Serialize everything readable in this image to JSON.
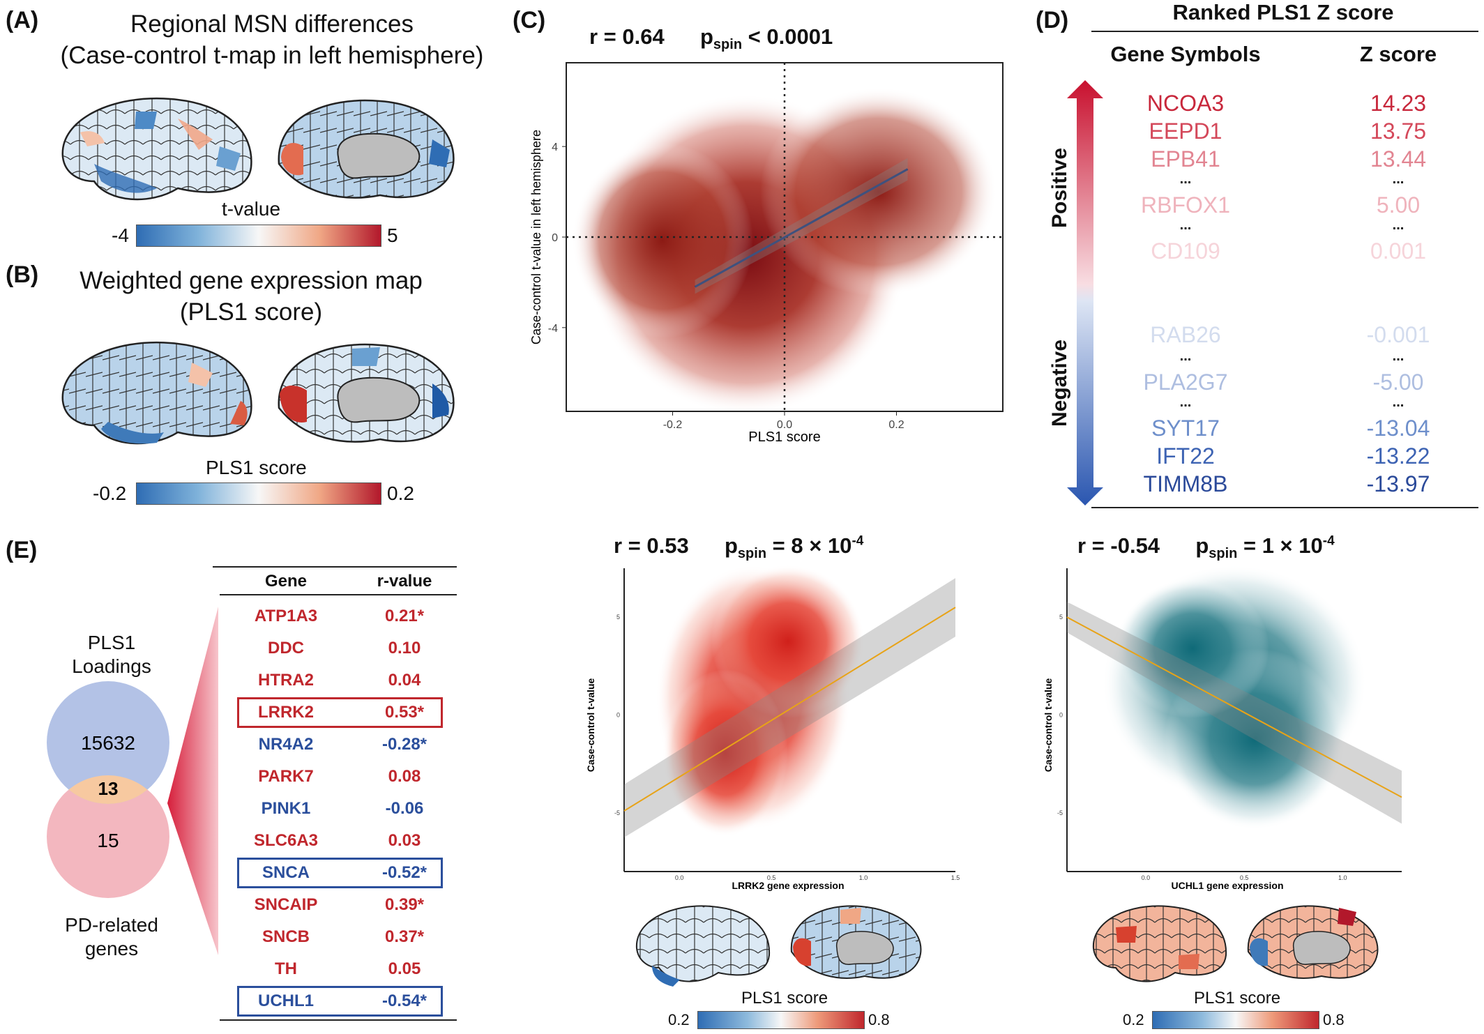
{
  "panelA": {
    "label": "(A)",
    "title_line1": "Regional MSN differences",
    "title_line2": "(Case-control t-map in left hemisphere)",
    "colorbar_title": "t-value",
    "colorbar_min": "-4",
    "colorbar_max": "5"
  },
  "panelB": {
    "label": "(B)",
    "title_line1": "Weighted gene expression map",
    "title_line2": "(PLS1 score)",
    "colorbar_title": "PLS1 score",
    "colorbar_min": "-0.2",
    "colorbar_max": "0.2"
  },
  "panelC": {
    "label": "(C)",
    "r_text": "r = 0.64",
    "p_main": "p",
    "p_sub": "spin",
    "p_rest": " < 0.0001",
    "chart_data": {
      "type": "scatter",
      "xlabel": "PLS1 score",
      "ylabel": "Case-control t-value in left hemisphere",
      "xticks": [
        "-0.2",
        "0.0",
        "0.2"
      ],
      "yticks": [
        "4",
        "0",
        "-4"
      ],
      "xlim": [
        -0.39,
        0.39
      ],
      "ylim": [
        -7.7,
        7.7
      ],
      "fit_line": {
        "x": [
          -0.16,
          0.22
        ],
        "y": [
          -2.2,
          3.0
        ]
      }
    }
  },
  "panelD": {
    "label": "(D)",
    "title": "Ranked PLS1 Z score",
    "col_gene": "Gene Symbols",
    "col_z": "Z score",
    "positive_label": "Positive",
    "negative_label": "Negative",
    "rows": [
      {
        "gene": "NCOA3",
        "z": "14.23",
        "color": "#c8283c"
      },
      {
        "gene": "EEPD1",
        "z": "13.75",
        "color": "#d4485a"
      },
      {
        "gene": "EPB41",
        "z": "13.44",
        "color": "#e28592"
      },
      {
        "gene": "...",
        "z": "...",
        "color": "#111111"
      },
      {
        "gene": "RBFOX1",
        "z": "5.00",
        "color": "#efb3bc"
      },
      {
        "gene": "...",
        "z": "...",
        "color": "#111111"
      },
      {
        "gene": "CD109",
        "z": "0.001",
        "color": "#f6d4da"
      },
      {
        "gene": "RAB26",
        "z": "-0.001",
        "color": "#d3dcee"
      },
      {
        "gene": "...",
        "z": "...",
        "color": "#111111"
      },
      {
        "gene": "PLA2G7",
        "z": "-5.00",
        "color": "#aebee0"
      },
      {
        "gene": "...",
        "z": "...",
        "color": "#111111"
      },
      {
        "gene": "SYT17",
        "z": "-13.04",
        "color": "#6e8fcb"
      },
      {
        "gene": "IFT22",
        "z": "-13.22",
        "color": "#3d63b3"
      },
      {
        "gene": "TIMM8B",
        "z": "-13.97",
        "color": "#2b4a9a"
      }
    ]
  },
  "panelE": {
    "label": "(E)",
    "venn_top_label_1": "PLS1",
    "venn_top_label_2": "Loadings",
    "venn_top_count": "15632",
    "venn_overlap": "13",
    "venn_bottom_count": "15",
    "venn_bottom_label_1": "PD-related",
    "venn_bottom_label_2": "genes",
    "col_gene": "Gene",
    "col_r": "r-value",
    "rows": [
      {
        "gene": "ATP1A3",
        "r": "0.21*",
        "color": "#c0272d",
        "boxed": false
      },
      {
        "gene": "DDC",
        "r": "0.10",
        "color": "#c0272d",
        "boxed": false
      },
      {
        "gene": "HTRA2",
        "r": "0.04",
        "color": "#c0272d",
        "boxed": false
      },
      {
        "gene": "LRRK2",
        "r": "0.53*",
        "color": "#c0272d",
        "boxed": true
      },
      {
        "gene": "NR4A2",
        "r": "-0.28*",
        "color": "#2b4f9c",
        "boxed": false
      },
      {
        "gene": "PARK7",
        "r": "0.08",
        "color": "#c0272d",
        "boxed": false
      },
      {
        "gene": "PINK1",
        "r": "-0.06",
        "color": "#2b4f9c",
        "boxed": false
      },
      {
        "gene": "SLC6A3",
        "r": "0.03",
        "color": "#c0272d",
        "boxed": false
      },
      {
        "gene": "SNCA",
        "r": "-0.52*",
        "color": "#2b4f9c",
        "boxed": true
      },
      {
        "gene": "SNCAIP",
        "r": "0.39*",
        "color": "#c0272d",
        "boxed": false
      },
      {
        "gene": "SNCB",
        "r": "0.37*",
        "color": "#c0272d",
        "boxed": false
      },
      {
        "gene": "TH",
        "r": "0.05",
        "color": "#c0272d",
        "boxed": false
      },
      {
        "gene": "UCHL1",
        "r": "-0.54*",
        "color": "#2b4f9c",
        "boxed": true
      }
    ]
  },
  "plotLRRK2": {
    "r_text": "r = 0.53",
    "p_main": "p",
    "p_sub": "spin",
    "p_rest": " = 8 × 10",
    "p_exp": "-4",
    "colorbar_title": "PLS1 score",
    "colorbar_min": "0.2",
    "colorbar_max": "0.8",
    "chart_data": {
      "type": "scatter",
      "xlabel": "LRRK2 gene expression",
      "ylabel": "Case-control t-value",
      "xticks": [
        "0.0",
        "0.5",
        "1.0",
        "1.5"
      ],
      "yticks": [
        "5",
        "0",
        "-5"
      ],
      "fit_line": {
        "x": [
          -0.3,
          1.5
        ],
        "y": [
          -4.9,
          5.5
        ]
      }
    }
  },
  "plotUCHL1": {
    "r_text": "r = -0.54",
    "p_main": "p",
    "p_sub": "spin",
    "p_rest": " = 1 × 10",
    "p_exp": "-4",
    "colorbar_title": "PLS1 score",
    "colorbar_min": "0.2",
    "colorbar_max": "0.8",
    "chart_data": {
      "type": "scatter",
      "xlabel": "UCHL1 gene expression",
      "ylabel": "Case-control t-value",
      "xticks": [
        "0.0",
        "0.5",
        "1.0"
      ],
      "yticks": [
        "5",
        "0",
        "-5"
      ],
      "fit_line": {
        "x": [
          -0.4,
          1.3
        ],
        "y": [
          5.0,
          -4.2
        ]
      }
    }
  }
}
